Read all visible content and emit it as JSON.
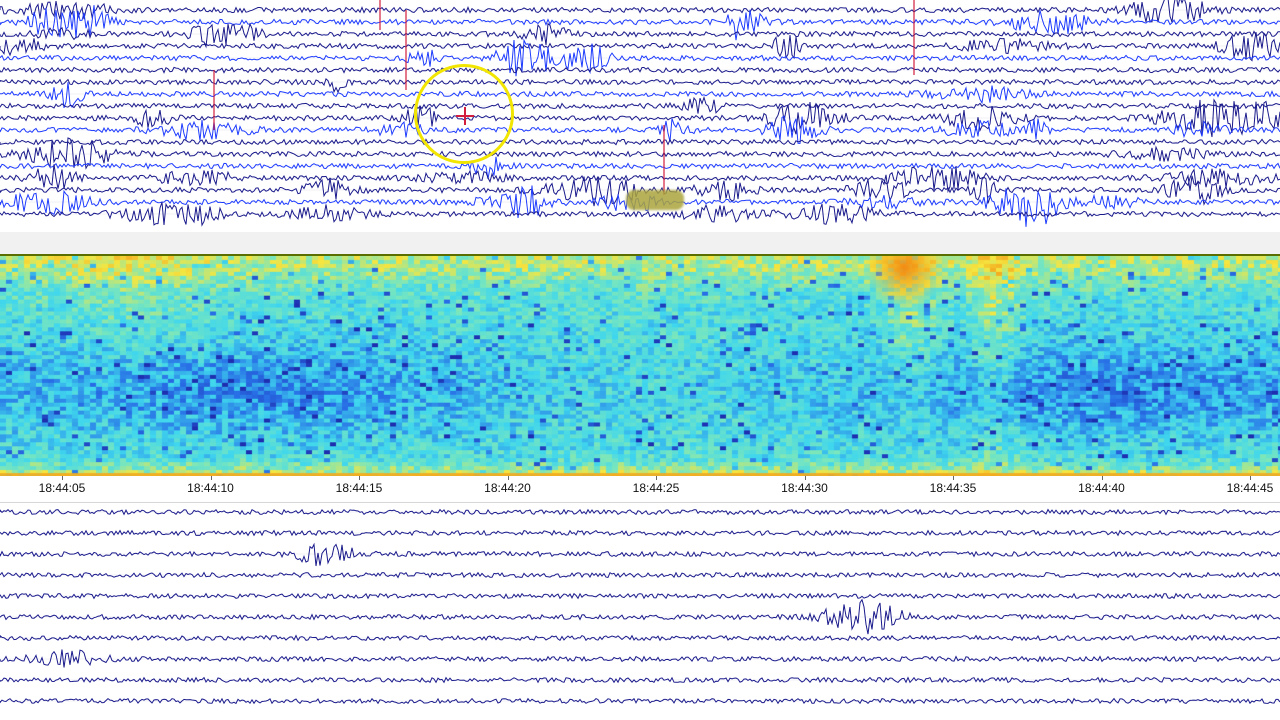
{
  "colors": {
    "trace_dark": "#1a1a8c",
    "trace_bright": "#1e3cff",
    "marker_line": "#d21e3c",
    "highlight_circle": "#f2e600",
    "spectrogram_low": "#1e2fb0",
    "spectrogram_mid": "#3fd6ee",
    "spectrogram_high": "#f5e640",
    "spectrogram_peak": "#f3a01a"
  },
  "icons": {
    "event_marker": "circle-highlight-icon",
    "pick_marker": "crosshair-icon"
  },
  "time_axis": {
    "ticks": [
      "18:44:05",
      "18:44:10",
      "18:44:15",
      "18:44:20",
      "18:44:25",
      "18:44:30",
      "18:44:35",
      "18:44:40",
      "18:44:45"
    ]
  }
}
